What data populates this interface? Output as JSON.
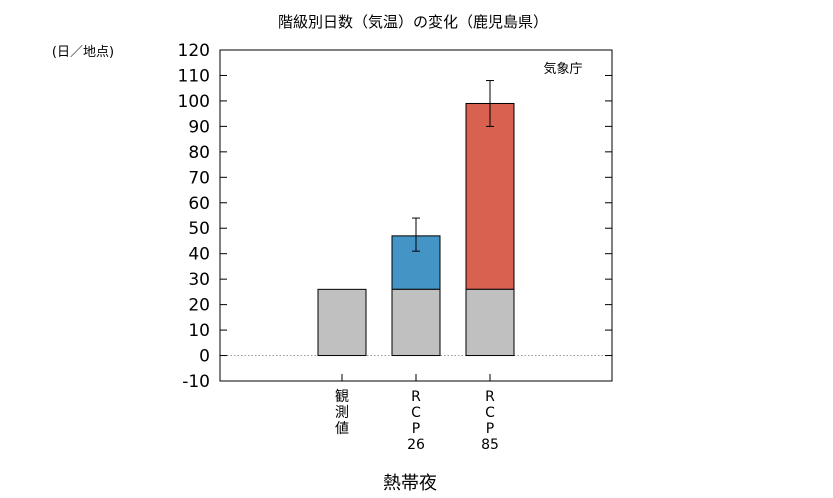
{
  "chart_data": {
    "type": "bar",
    "title": "階級別日数（気温）の変化（鹿児島県）",
    "ylabel": "(日／地点)",
    "xlabel": "熱帯夜",
    "credit": "気象庁",
    "ylim": [
      -10,
      120
    ],
    "yticks": [
      -10,
      0,
      10,
      20,
      30,
      40,
      50,
      60,
      70,
      80,
      90,
      100,
      110,
      120
    ],
    "grid": false,
    "categories": [
      {
        "lines": [
          "観",
          "測",
          "値"
        ]
      },
      {
        "lines": [
          "R",
          "C",
          "P",
          "26"
        ]
      },
      {
        "lines": [
          "R",
          "C",
          "P",
          "85"
        ]
      }
    ],
    "baseline": [
      26,
      26,
      26
    ],
    "total": [
      26,
      47,
      99
    ],
    "error": [
      null,
      [
        41,
        54
      ],
      [
        90,
        108
      ]
    ],
    "colors": {
      "baseline": "#c0c0c0",
      "increase": [
        "#c0c0c0",
        "#4494c6",
        "#d9614f"
      ],
      "zero_line": "#999999"
    }
  }
}
